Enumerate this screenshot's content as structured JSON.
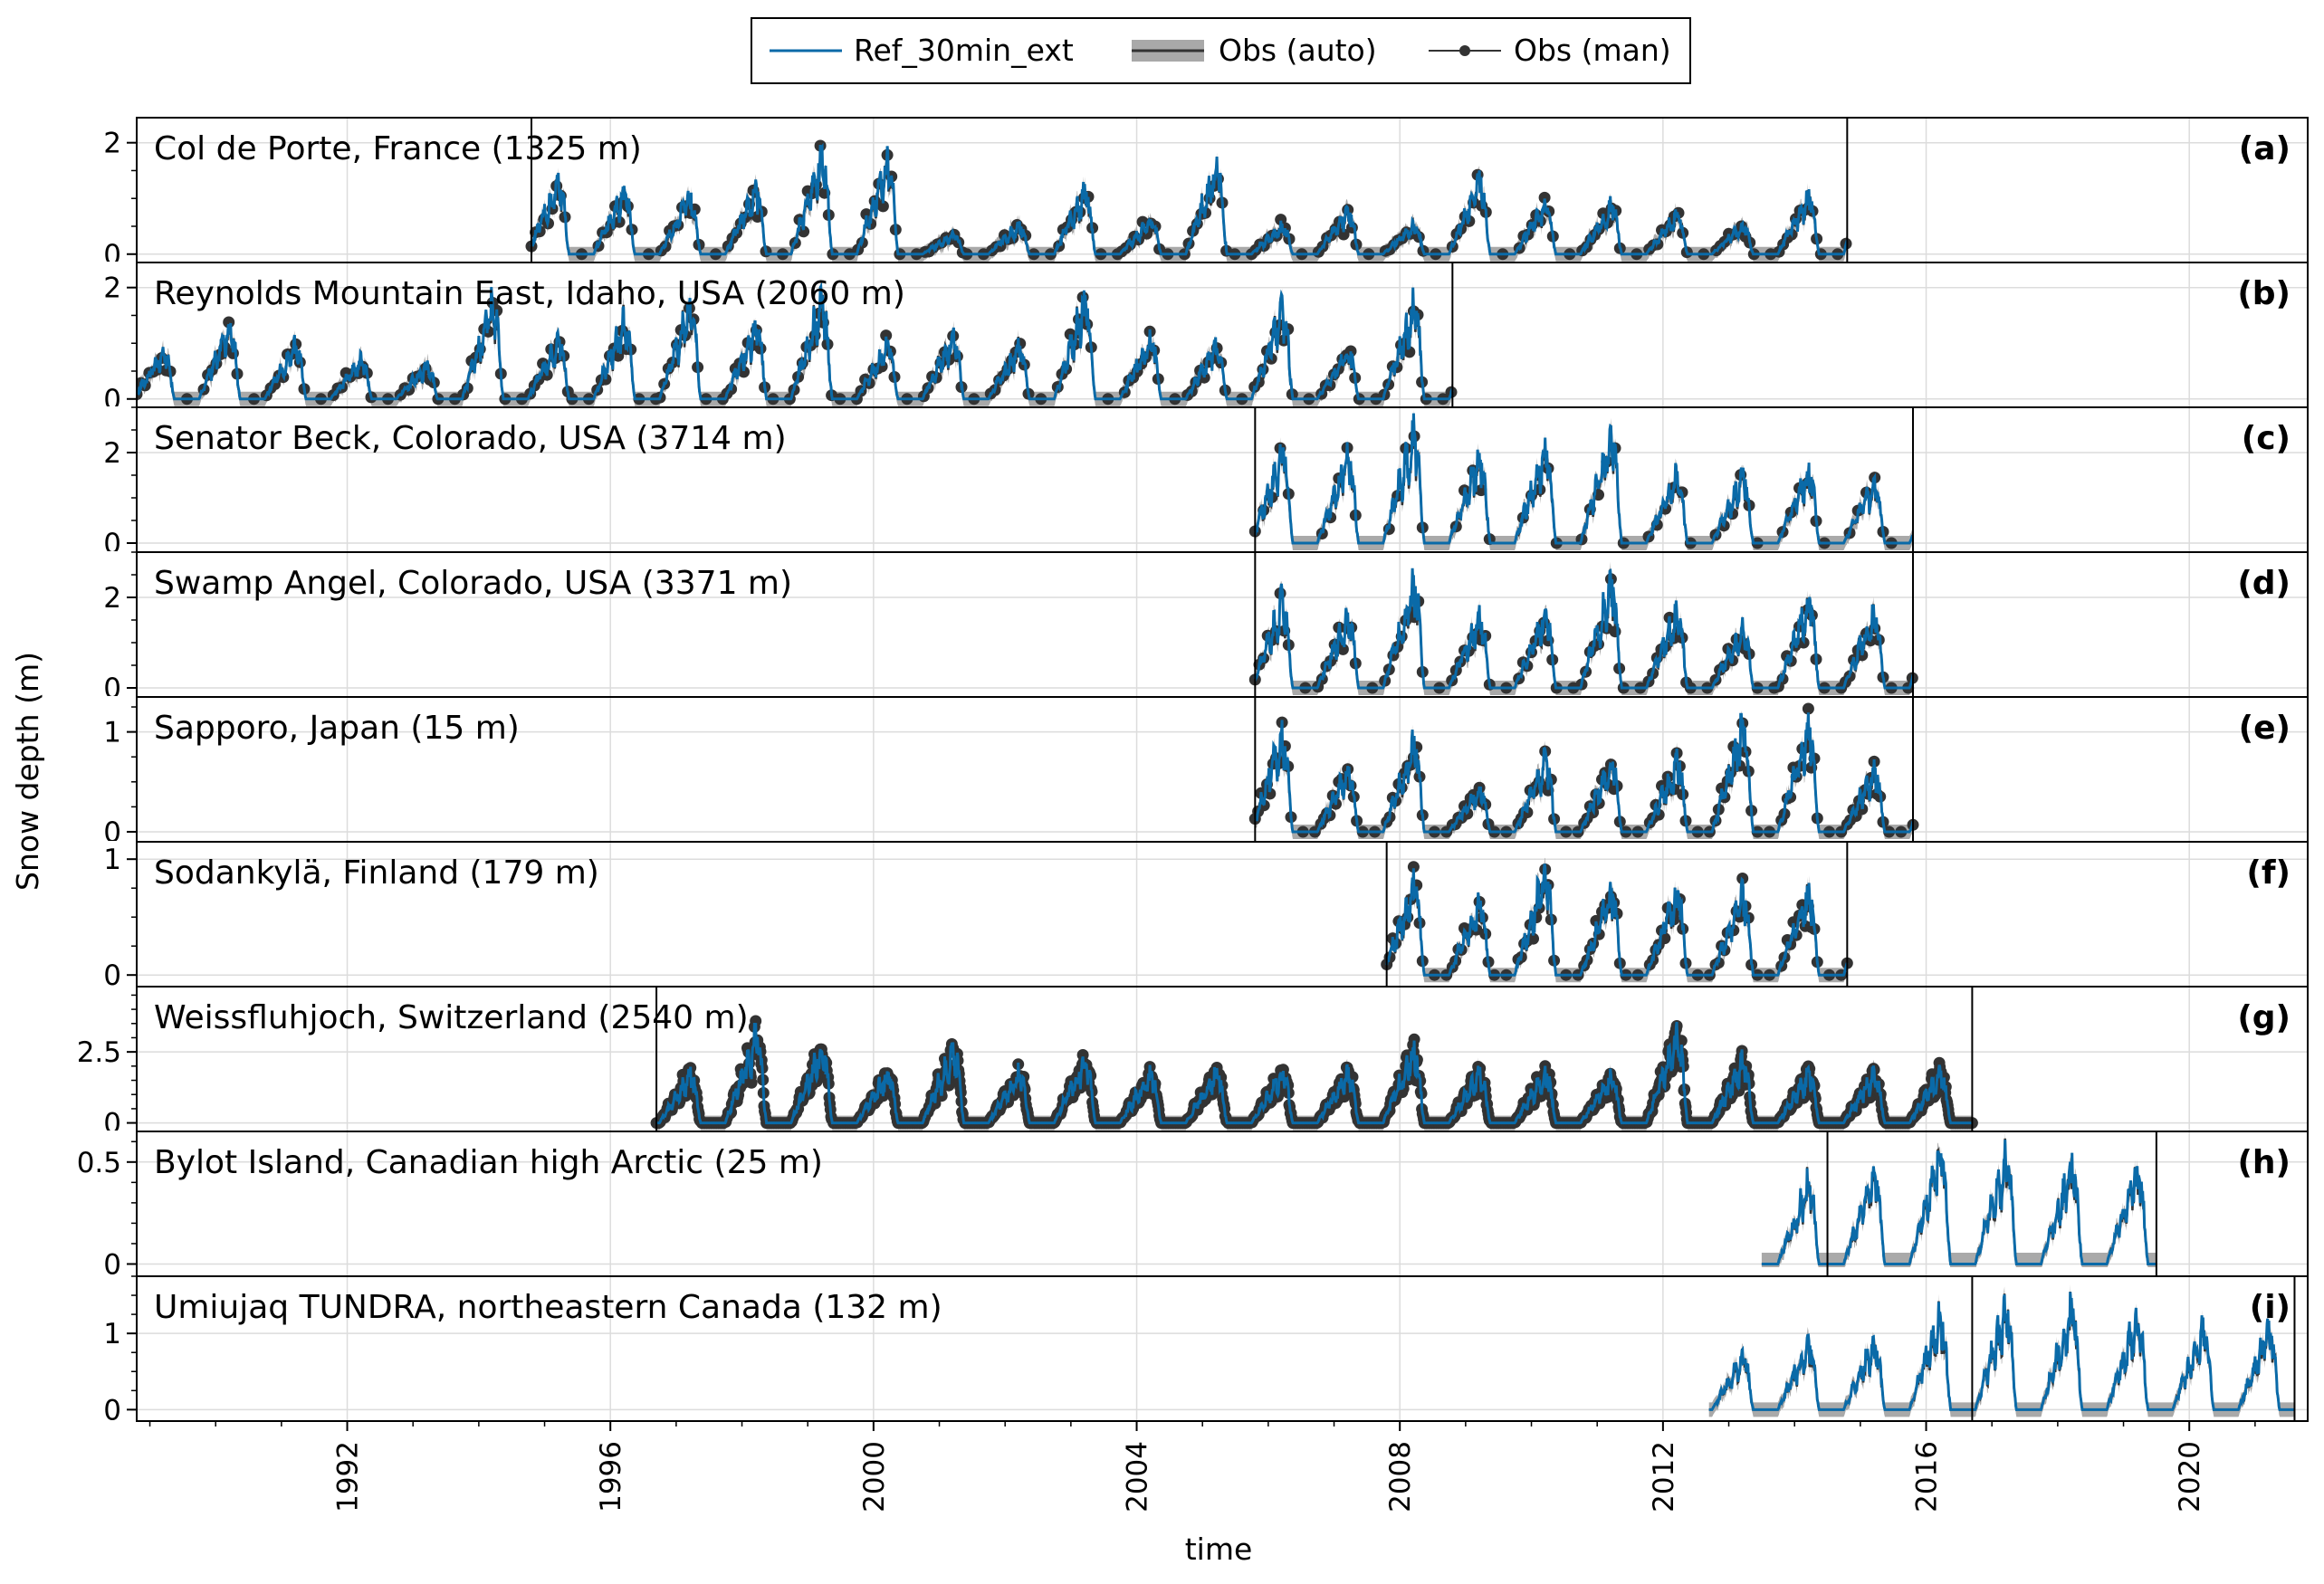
{
  "chart_data": {
    "type": "line",
    "xlabel": "time",
    "ylabel": "Snow depth (m)",
    "xlim": [
      1988.8,
      2021.8
    ],
    "xticks": [
      "1992",
      "1996",
      "2000",
      "2004",
      "2008",
      "2012",
      "2016",
      "2020"
    ],
    "xtick_values": [
      1992,
      1996,
      2000,
      2004,
      2008,
      2012,
      2016,
      2020
    ],
    "grid": true,
    "legend": {
      "placement": "top-center",
      "entries": [
        {
          "label": "Ref_30min_ext",
          "style": "line",
          "color": "#0a6aa8"
        },
        {
          "label": "Obs (auto)",
          "style": "band",
          "color": "#a9a9a9"
        },
        {
          "label": "Obs (man)",
          "style": "marker",
          "color": "#333333"
        }
      ]
    },
    "panels": [
      {
        "letter": "(a)",
        "title": "Col de Porte, France (1325 m)",
        "ylim": [
          -0.15,
          2.45
        ],
        "yticks": [
          0,
          2
        ],
        "ytick_labels": [
          "0",
          "2"
        ],
        "minor_step": 0.5,
        "start": 1994.8,
        "end": 2014.8,
        "seasons": [
          1.5,
          1.3,
          1.2,
          1.3,
          2.0,
          1.9,
          0.4,
          0.6,
          1.3,
          0.7,
          1.8,
          0.6,
          0.9,
          0.6,
          1.5,
          1.0,
          1.0,
          0.8,
          0.6,
          1.2,
          2.1,
          1.3
        ],
        "season_offset": 0,
        "auto_all_year": false,
        "manual_density": 2,
        "manual_weekly": false
      },
      {
        "letter": "(b)",
        "title": "Reynolds Mountain East, Idaho, USA (2060 m)",
        "ylim": [
          -0.15,
          2.45
        ],
        "yticks": [
          0,
          2
        ],
        "ytick_labels": [
          "0",
          "2"
        ],
        "minor_step": 0.5,
        "start": 1988.8,
        "end": 2008.8,
        "seasons": [
          1.0,
          1.5,
          1.1,
          0.8,
          0.7,
          2.0,
          1.2,
          1.6,
          1.9,
          1.5,
          2.0,
          1.1,
          1.3,
          1.1,
          2.0,
          1.2,
          1.1,
          1.8,
          1.0,
          1.9,
          1.4,
          1.8
        ],
        "season_offset": 0,
        "auto_all_year": false,
        "manual_density": 2,
        "manual_weekly": false
      },
      {
        "letter": "(c)",
        "title": "Senator Beck, Colorado, USA (3714 m)",
        "ylim": [
          -0.2,
          3.0
        ],
        "yticks": [
          0,
          2
        ],
        "ytick_labels": [
          "0",
          "2"
        ],
        "minor_step": 0.5,
        "start": 2005.8,
        "end": 2015.8,
        "seasons": [
          2.3,
          2.2,
          2.8,
          2.2,
          2.4,
          2.7,
          1.7,
          1.7,
          1.8,
          1.5
        ],
        "season_offset": 0,
        "auto_all_year": false,
        "manual_density": 1,
        "manual_weekly": false
      },
      {
        "letter": "(d)",
        "title": "Swamp Angel, Colorado, USA (3371 m)",
        "ylim": [
          -0.2,
          3.0
        ],
        "yticks": [
          0,
          2
        ],
        "ytick_labels": [
          "0",
          "2"
        ],
        "minor_step": 0.5,
        "start": 2005.8,
        "end": 2015.8,
        "seasons": [
          2.2,
          1.8,
          2.6,
          1.8,
          1.9,
          2.6,
          1.9,
          1.5,
          2.2,
          1.9
        ],
        "season_offset": 0,
        "auto_all_year": false,
        "manual_density": 2,
        "manual_weekly": false
      },
      {
        "letter": "(e)",
        "title": "Sapporo, Japan (15 m)",
        "ylim": [
          -0.1,
          1.35
        ],
        "yticks": [
          0,
          1
        ],
        "ytick_labels": [
          "0",
          "1"
        ],
        "minor_step": 0.25,
        "start": 2005.8,
        "end": 2015.8,
        "seasons": [
          1.1,
          0.7,
          1.0,
          0.5,
          0.8,
          0.8,
          0.8,
          1.2,
          1.2,
          0.7
        ],
        "season_offset": 0,
        "auto_all_year": false,
        "manual_density": 3,
        "manual_weekly": false
      },
      {
        "letter": "(f)",
        "title": "Sodankylä, Finland (179 m)",
        "ylim": [
          -0.1,
          1.15
        ],
        "yticks": [
          0,
          1
        ],
        "ytick_labels": [
          "0",
          "1"
        ],
        "minor_step": 0.25,
        "start": 2007.8,
        "end": 2014.8,
        "seasons": [
          0.9,
          0.7,
          1.0,
          0.8,
          0.8,
          0.8,
          0.8
        ],
        "season_offset": 0,
        "auto_all_year": false,
        "manual_density": 3,
        "manual_weekly": false
      },
      {
        "letter": "(g)",
        "title": "Weissfluhjoch, Switzerland (2540 m)",
        "ylim": [
          -0.3,
          4.8
        ],
        "yticks": [
          0,
          2.5
        ],
        "ytick_labels": [
          "0",
          "2.5"
        ],
        "minor_step": 0.5,
        "start": 1996.7,
        "end": 2016.7,
        "seasons": [
          2.5,
          2.0,
          3.5,
          3.0,
          2.0,
          3.0,
          2.0,
          2.5,
          2.0,
          2.0,
          2.0,
          2.0,
          3.0,
          2.0,
          2.0,
          1.8,
          3.5,
          2.5,
          2.0,
          2.0,
          2.0
        ],
        "season_offset": 0,
        "auto_all_year": false,
        "manual_density": 9,
        "manual_weekly": true
      },
      {
        "letter": "(h)",
        "title": "Bylot Island, Canadian high Arctic (25 m)",
        "ylim": [
          -0.06,
          0.65
        ],
        "yticks": [
          0,
          0.5
        ],
        "ytick_labels": [
          "0",
          "0.5"
        ],
        "minor_step": 0.1,
        "start": 2014.5,
        "end": 2019.5,
        "pre_start": 2013.5,
        "seasons": [
          0.25,
          0.45,
          0.5,
          0.6,
          0.6,
          0.55
        ],
        "season_offset": 0,
        "auto_all_year": true,
        "manual_density": 0,
        "manual_weekly": false
      },
      {
        "letter": "(i)",
        "title": "Umiujaq TUNDRA, northeastern Canada (132 m)",
        "ylim": [
          -0.15,
          1.75
        ],
        "yticks": [
          0,
          1
        ],
        "ytick_labels": [
          "0",
          "1"
        ],
        "minor_step": 0.25,
        "start": 2016.7,
        "end": 2021.6,
        "pre_start": 2012.7,
        "seasons": [
          1.0,
          0.8,
          1.0,
          1.0,
          1.4,
          1.5,
          1.5,
          1.4,
          1.2
        ],
        "season_offset": 0,
        "auto_all_year": false,
        "manual_density": 0,
        "manual_weekly": false
      }
    ]
  }
}
